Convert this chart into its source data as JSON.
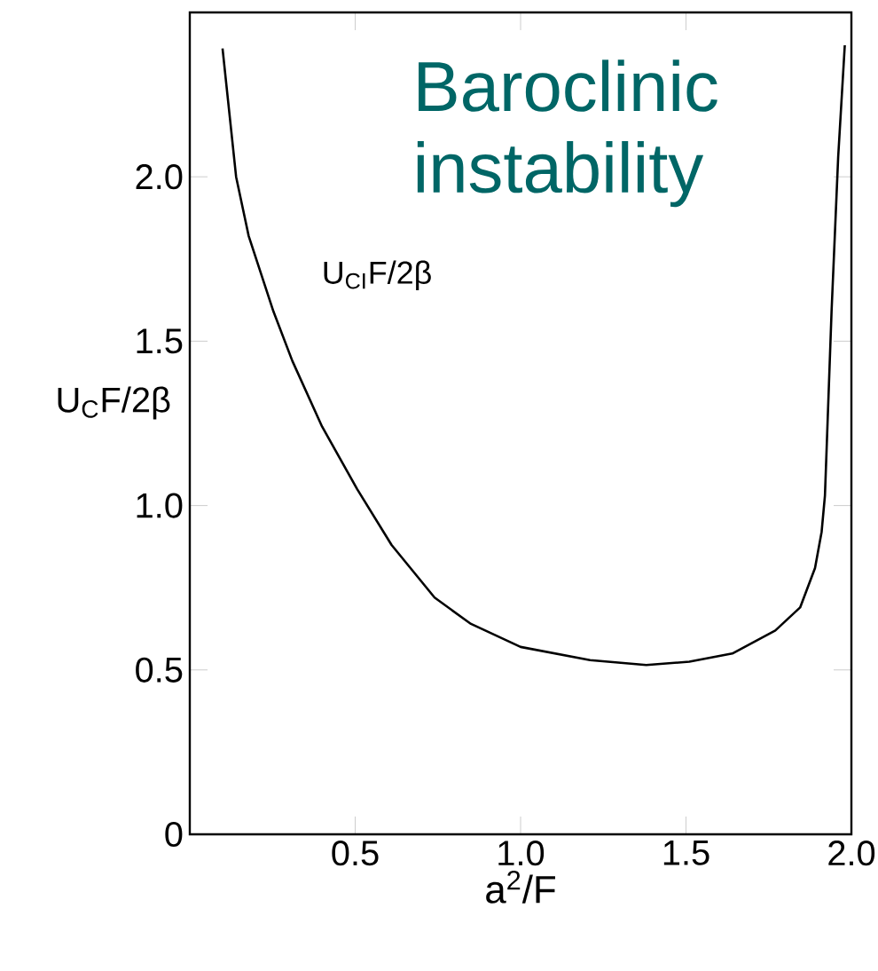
{
  "chart_data": {
    "type": "line",
    "title": "Baroclinic instability",
    "xlabel": "a$^{2}$/F",
    "ylabel": "U$_{C}$F/2β",
    "annotations": [
      "U$_{CI}$F/2β"
    ],
    "x": [
      0.099,
      0.14,
      0.178,
      0.253,
      0.31,
      0.4,
      0.506,
      0.61,
      0.74,
      0.85,
      1.0,
      1.21,
      1.38,
      1.51,
      1.64,
      1.77,
      1.845,
      1.89,
      1.91,
      1.92,
      1.94,
      1.96,
      1.98
    ],
    "series": [
      {
        "color": "#000000",
        "values": [
          2.39,
          2.0,
          1.82,
          1.59,
          1.44,
          1.24,
          1.05,
          0.88,
          0.72,
          0.64,
          0.57,
          0.53,
          0.515,
          0.525,
          0.55,
          0.62,
          0.69,
          0.81,
          0.92,
          1.03,
          1.59,
          2.06,
          2.4
        ]
      }
    ],
    "xlim": [
      0,
      2.0
    ],
    "ylim": [
      0,
      2.5
    ],
    "xticks": [
      {
        "value": 0.5,
        "label": "0.5"
      },
      {
        "value": 1,
        "label": "1.0"
      },
      {
        "value": 1.5,
        "label": "1.5"
      },
      {
        "value": 2,
        "label": "2.0"
      }
    ],
    "yticks": [
      {
        "value": 0,
        "label": "0"
      },
      {
        "value": 0.5,
        "label": "0.5"
      },
      {
        "value": 1,
        "label": "1.0"
      },
      {
        "value": 1.5,
        "label": "1.5"
      },
      {
        "value": 2,
        "label": "2.0"
      }
    ],
    "grid": false,
    "legend": false,
    "marker": "none",
    "line_style": "solid"
  }
}
